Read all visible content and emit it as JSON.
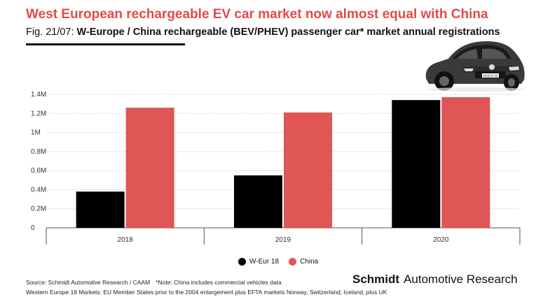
{
  "header": {
    "title": "West European rechargeable EV car market now almost equal with China",
    "subtitle_prefix": "Fig. 21/07: ",
    "subtitle_main": "W-Europe / China rechargeable (BEV/PHEV) passenger car* market annual registrations"
  },
  "colors": {
    "weur": "#000000",
    "china": "#e05555",
    "title": "#e04b4b",
    "grid": "#d0d0d0"
  },
  "chart_data": {
    "type": "bar",
    "categories": [
      "2018",
      "2019",
      "2020"
    ],
    "series": [
      {
        "name": "W-Eur 18",
        "values": [
          0.38,
          0.55,
          1.34
        ]
      },
      {
        "name": "China",
        "values": [
          1.26,
          1.21,
          1.37
        ]
      }
    ],
    "yticks": [
      "0",
      "0.2M",
      "0.4M",
      "0.6M",
      "0.8M",
      "1M",
      "1.2M",
      "1.4M"
    ],
    "ytick_values": [
      0,
      0.2,
      0.4,
      0.6,
      0.8,
      1.0,
      1.2,
      1.4
    ],
    "ylim": [
      0,
      1.4
    ],
    "title": "W-Europe / China rechargeable (BEV/PHEV) passenger car* market annual registrations",
    "xlabel": "",
    "ylabel": "",
    "legend_position": "bottom-center"
  },
  "legend": [
    {
      "label": "W-Eur 18",
      "color": "#000000"
    },
    {
      "label": "China",
      "color": "#e05555"
    }
  ],
  "footer": {
    "source": "Source: Schmidt Automotive Research / CAAM",
    "note": "*Note: China includes commercial vehicles data",
    "markets": "Western Europe 18 Markets: EU Member States prior to the 2004 enlargement plus EFTA markets Norway, Switzerland, Iceland, plus UK",
    "brand_bold": "Schmidt",
    "brand_rest": "Automotive Research"
  },
  "image": {
    "plate_text": "WOB ID 3E"
  }
}
